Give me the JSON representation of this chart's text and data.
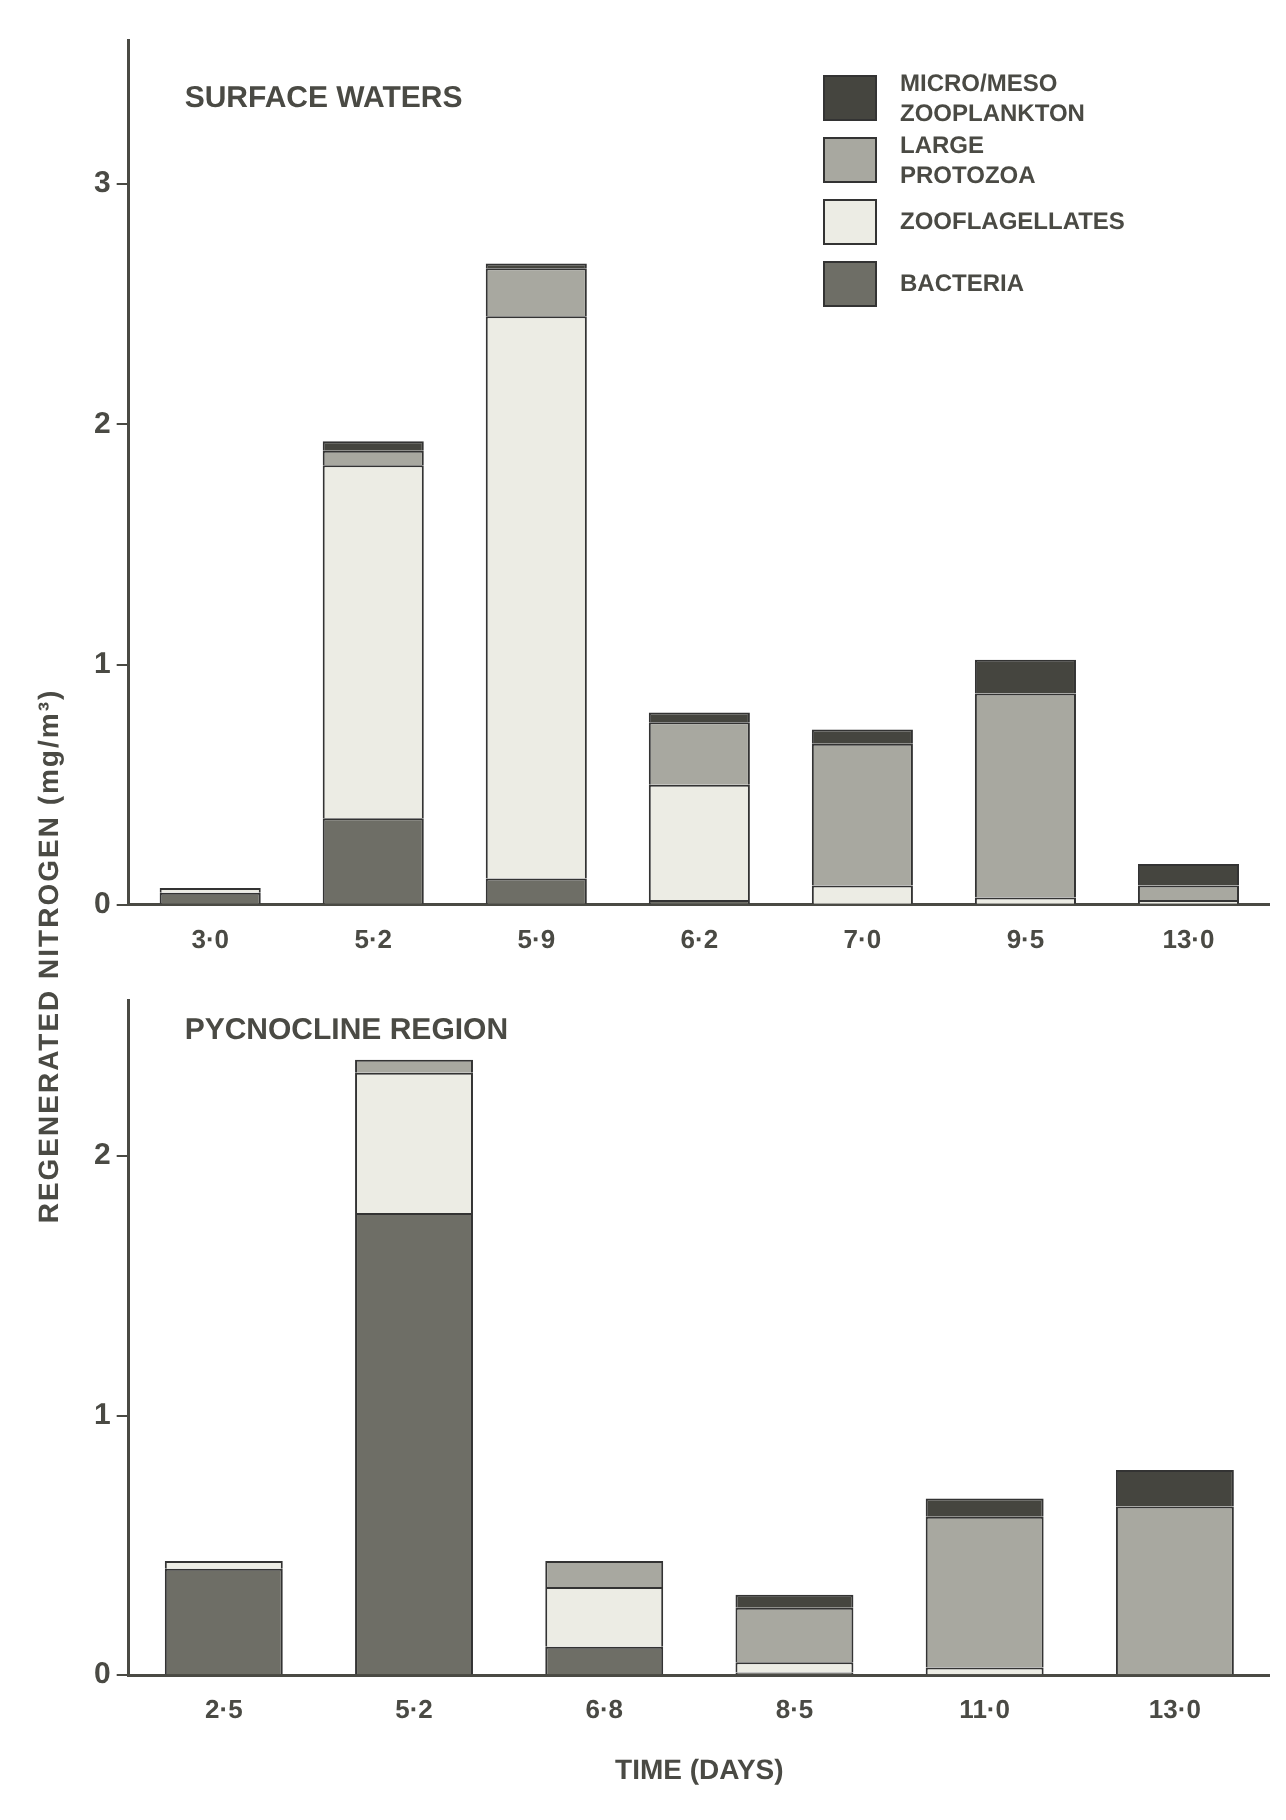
{
  "chart_data": [
    {
      "type": "bar",
      "title": "SURFACE WATERS",
      "ylabel": "REGENERATED NITROGEN (mg/m³)",
      "categories": [
        "3·0",
        "5·2",
        "5·9",
        "6·2",
        "7·0",
        "9·5",
        "13·0"
      ],
      "stacked": true,
      "ylim": [
        0,
        3.6
      ],
      "yticks": [
        0,
        1,
        2,
        3
      ],
      "legend": "top right",
      "grid": false,
      "series": [
        {
          "name": "BACTERIA",
          "color": "#6e6e66",
          "values": [
            0.05,
            0.36,
            0.11,
            0.02,
            null,
            null,
            0
          ]
        },
        {
          "name": "ZOOFLAGELLATES",
          "color": "#ecece4",
          "values": [
            0.02,
            1.47,
            2.34,
            0.48,
            0.08,
            0.03,
            0.02
          ]
        },
        {
          "name": "LARGE PROTOZOA",
          "color": "#a8a8a0",
          "values": [
            0,
            0.06,
            0.2,
            0.26,
            0.59,
            0.85,
            0.06
          ]
        },
        {
          "name": "MICRO/MESO ZOOPLANKTON",
          "color": "#45453f",
          "values": [
            0,
            0.04,
            0.02,
            0.04,
            0.06,
            0.14,
            0.09
          ]
        }
      ]
    },
    {
      "type": "bar",
      "title": "PYCNOCLINE REGION",
      "xlabel": "TIME (DAYS)",
      "categories": [
        "2·5",
        "5·2",
        "6·8",
        "8·5",
        "11·0",
        "13·0"
      ],
      "stacked": true,
      "ylim": [
        0,
        2.6
      ],
      "yticks": [
        0,
        1,
        2
      ],
      "grid": false,
      "series": [
        {
          "color": "#6e6e66",
          "values": [
            0.41,
            1.78,
            0.11,
            0.01,
            0,
            0
          ]
        },
        {
          "color": "#ecece4",
          "values": [
            0.03,
            0.54,
            0.23,
            0.04,
            0.03,
            0
          ]
        },
        {
          "color": "#a8a8a0",
          "values": [
            0,
            0.05,
            0.1,
            0.21,
            0.58,
            0.65
          ]
        },
        {
          "color": "#45453f",
          "values": [
            0,
            0,
            0,
            0.05,
            0.07,
            0.14
          ]
        }
      ]
    }
  ]
}
